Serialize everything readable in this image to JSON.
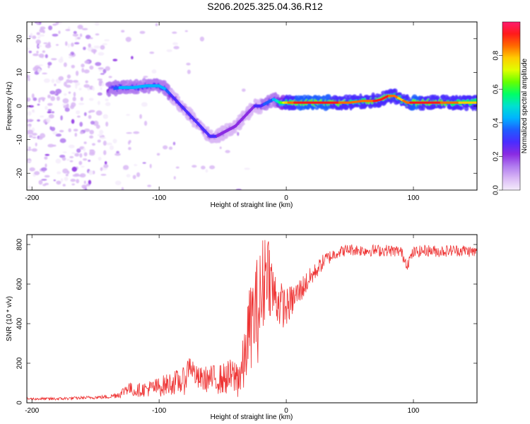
{
  "title": "S206.2025.325.04.36.R12",
  "colors": {
    "snr_line": "#ee3333",
    "colormap": [
      "#f4ecfb",
      "#d9b8f5",
      "#b07aef",
      "#8a2be2",
      "#4a2cff",
      "#1f5cff",
      "#00b4ff",
      "#00e0d0",
      "#00ff66",
      "#66ff00",
      "#e0ff00",
      "#ffcc00",
      "#ff6a00",
      "#ff1a1a",
      "#ff1a6e"
    ]
  },
  "chart_data": [
    {
      "type": "heatmap",
      "xlabel": "Height of straight line (km)",
      "ylabel": "Frequency (Hz)",
      "xlim": [
        -204,
        150
      ],
      "ylim": [
        -25,
        25
      ],
      "x_ticks": [
        -200,
        -100,
        0,
        100
      ],
      "x_tick_labels": [
        "-200",
        "-100",
        "0",
        "100"
      ],
      "y_ticks": [
        -20,
        -10,
        0,
        10,
        20
      ],
      "y_tick_labels": [
        "-20",
        "-10",
        "0",
        "10",
        "20"
      ],
      "colorbar": {
        "label": "Normalized spectral amplitude",
        "range": [
          0,
          1
        ],
        "ticks": [
          0.0,
          0.2,
          0.4,
          0.6,
          0.8
        ],
        "tick_labels": [
          "0.0",
          "0.2",
          "0.4",
          "0.6",
          "0.8"
        ]
      },
      "ridge": {
        "description_free": true,
        "x": [
          -140,
          -130,
          -120,
          -110,
          -100,
          -95,
          -90,
          -85,
          -80,
          -75,
          -70,
          -65,
          -60,
          -55,
          -50,
          -45,
          -40,
          -35,
          -30,
          -25,
          -20,
          -15,
          -10,
          -5,
          0,
          10,
          20,
          30,
          40,
          50,
          60,
          70,
          75,
          80,
          85,
          90,
          95,
          100,
          110,
          120,
          130,
          140,
          150
        ],
        "y": [
          5,
          5.5,
          5.5,
          6,
          6,
          5,
          3,
          1,
          -1,
          -3,
          -5,
          -7,
          -9,
          -9,
          -8,
          -7,
          -6,
          -4,
          -2,
          0,
          0,
          1,
          2,
          1,
          1,
          1,
          1,
          1,
          1,
          1,
          1.5,
          1.5,
          2,
          3,
          3,
          2,
          1,
          1,
          1,
          1,
          1,
          1,
          1
        ],
        "amplitude": [
          0.35,
          0.4,
          0.45,
          0.45,
          0.45,
          0.4,
          0.3,
          0.3,
          0.3,
          0.3,
          0.3,
          0.3,
          0.3,
          0.25,
          0.2,
          0.2,
          0.2,
          0.2,
          0.2,
          0.25,
          0.3,
          0.35,
          0.4,
          0.55,
          0.8,
          0.95,
          0.95,
          0.95,
          0.9,
          0.85,
          0.85,
          0.9,
          0.9,
          0.9,
          0.85,
          0.8,
          0.85,
          0.95,
          0.9,
          0.9,
          0.85,
          0.8,
          0.8
        ]
      }
    },
    {
      "type": "line",
      "xlabel": "Height of straight line (km)",
      "ylabel": "SNR (10 * v/v)",
      "xlim": [
        -204,
        150
      ],
      "ylim": [
        0,
        850
      ],
      "x_ticks": [
        -200,
        -100,
        0,
        100
      ],
      "x_tick_labels": [
        "-200",
        "-100",
        "0",
        "100"
      ],
      "y_ticks": [
        0,
        200,
        400,
        600,
        800
      ],
      "y_tick_labels": [
        "0",
        "200",
        "400",
        "600",
        "800"
      ],
      "series": [
        {
          "name": "SNR",
          "envelope_x": [
            -204,
            -180,
            -160,
            -140,
            -130,
            -125,
            -120,
            -110,
            -100,
            -90,
            -80,
            -76,
            -70,
            -60,
            -50,
            -45,
            -40,
            -35,
            -33,
            -30,
            -25,
            -20,
            -17,
            -15,
            -12,
            -10,
            -5,
            0,
            5,
            10,
            15,
            20,
            25,
            30,
            40,
            50,
            60,
            70,
            80,
            90,
            95,
            100,
            110,
            120,
            130,
            140,
            150
          ],
          "envelope_y": [
            20,
            20,
            25,
            30,
            45,
            80,
            60,
            70,
            80,
            100,
            110,
            200,
            120,
            120,
            120,
            130,
            130,
            150,
            200,
            350,
            450,
            500,
            650,
            720,
            600,
            550,
            500,
            480,
            520,
            560,
            600,
            640,
            680,
            720,
            760,
            775,
            770,
            770,
            770,
            765,
            700,
            760,
            770,
            765,
            770,
            770,
            760
          ],
          "ripple": [
            6,
            8,
            8,
            10,
            20,
            40,
            30,
            40,
            50,
            60,
            70,
            60,
            60,
            70,
            80,
            90,
            100,
            150,
            150,
            200,
            250,
            300,
            250,
            200,
            200,
            150,
            120,
            100,
            80,
            70,
            60,
            50,
            40,
            40,
            30,
            30,
            30,
            30,
            30,
            30,
            30,
            30,
            30,
            30,
            30,
            30,
            30
          ]
        }
      ]
    }
  ]
}
